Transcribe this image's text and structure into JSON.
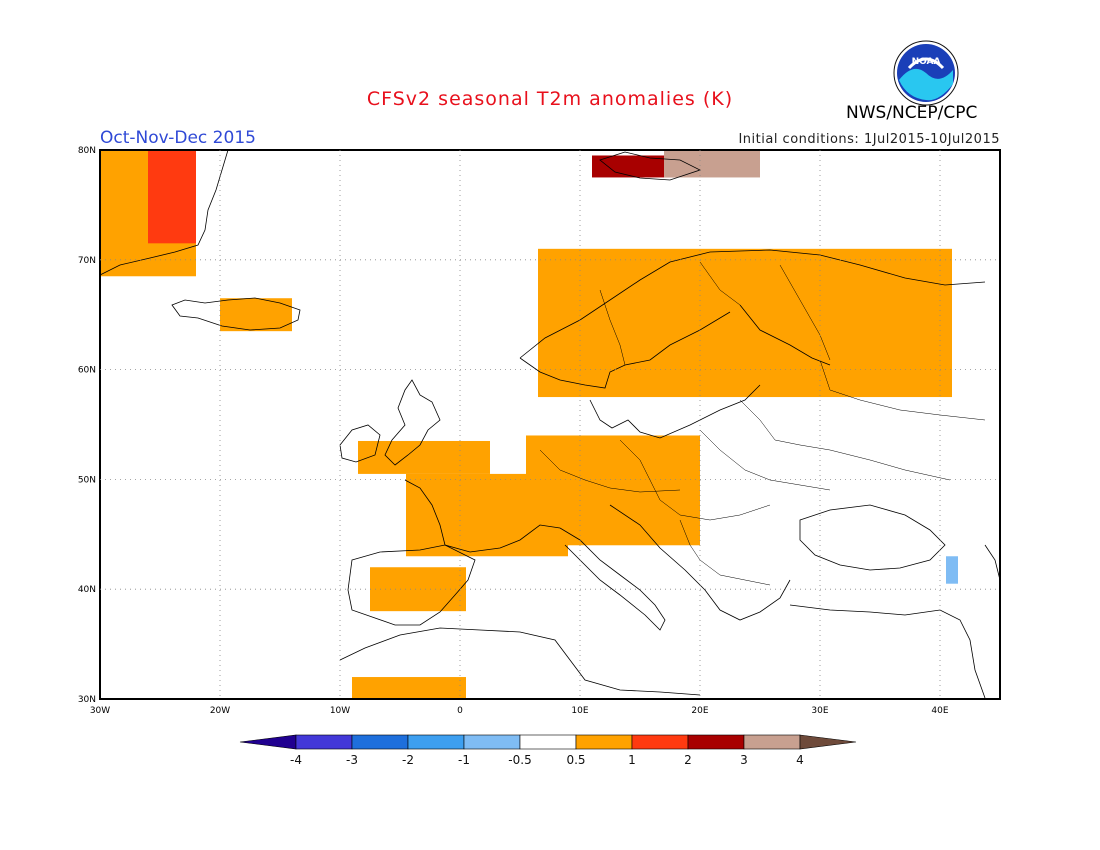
{
  "title": "CFSv2 seasonal T2m anomalies (K)",
  "season": "Oct-Nov-Dec 2015",
  "initial_conditions": "Initial conditions: 1Jul2015-10Jul2015",
  "agency": "NWS/NCEP/CPC",
  "logo_text": "NOAA",
  "map": {
    "lon_range": [
      -30,
      45
    ],
    "lat_range": [
      30,
      80
    ],
    "lat_ticks": [
      {
        "value": 80,
        "label": "80N"
      },
      {
        "value": 70,
        "label": "70N"
      },
      {
        "value": 60,
        "label": "60N"
      },
      {
        "value": 50,
        "label": "50N"
      },
      {
        "value": 40,
        "label": "40N"
      },
      {
        "value": 30,
        "label": "30N"
      }
    ],
    "lon_ticks": [
      {
        "value": -30,
        "label": "30W"
      },
      {
        "value": -20,
        "label": "20W"
      },
      {
        "value": -10,
        "label": "10W"
      },
      {
        "value": 0,
        "label": "0"
      },
      {
        "value": 10,
        "label": "10E"
      },
      {
        "value": 20,
        "label": "20E"
      },
      {
        "value": 30,
        "label": "30E"
      },
      {
        "value": 40,
        "label": "40E"
      }
    ],
    "anomaly_regions": [
      {
        "name": "Greenland",
        "class": "0.5-1",
        "lon": [
          -30,
          -22
        ],
        "lat": [
          68.5,
          80
        ]
      },
      {
        "name": "Greenland east coast",
        "class": "1-2",
        "lon": [
          -26,
          -22
        ],
        "lat": [
          71.5,
          80
        ]
      },
      {
        "name": "Iceland",
        "class": "0.5-1",
        "lon": [
          -20,
          -14
        ],
        "lat": [
          63.5,
          66.5
        ]
      },
      {
        "name": "Svalbard",
        "class": "2-3",
        "lon": [
          11,
          18
        ],
        "lat": [
          77.5,
          79.5
        ]
      },
      {
        "name": "Svalbard east",
        "class": "3-4",
        "lon": [
          17,
          25
        ],
        "lat": [
          77.5,
          80
        ]
      },
      {
        "name": "Scandinavia",
        "class": "0.5-1",
        "lon": [
          6.5,
          41
        ],
        "lat": [
          57.5,
          71
        ]
      },
      {
        "name": "British Isles",
        "class": "0.5-1",
        "lon": [
          -8.5,
          2.5
        ],
        "lat": [
          50.5,
          53.5
        ]
      },
      {
        "name": "France",
        "class": "0.5-1",
        "lon": [
          -4.5,
          9
        ],
        "lat": [
          43,
          50.5
        ]
      },
      {
        "name": "Central Europe",
        "class": "0.5-1",
        "lon": [
          5.5,
          20
        ],
        "lat": [
          44,
          54
        ]
      },
      {
        "name": "Iberia",
        "class": "0.5-1",
        "lon": [
          -7.5,
          0.5
        ],
        "lat": [
          38,
          42
        ]
      },
      {
        "name": "North Africa",
        "class": "0.5-1",
        "lon": [
          -9,
          0.5
        ],
        "lat": [
          30,
          32
        ]
      },
      {
        "name": "Caucasus",
        "class": "-1--0.5",
        "lon": [
          40.5,
          41.5
        ],
        "lat": [
          40.5,
          43
        ]
      }
    ]
  },
  "colorbar": {
    "colors": [
      "#200090",
      "#4338d8",
      "#1e6fdc",
      "#3d9ff0",
      "#7fbcf4",
      "#ffffff",
      "#ffa200",
      "#ff3a10",
      "#a80000",
      "#c8a090",
      "#6e4a3a"
    ],
    "labels": [
      "-4",
      "-3",
      "-2",
      "-1",
      "-0.5",
      "0.5",
      "1",
      "2",
      "3",
      "4"
    ]
  }
}
